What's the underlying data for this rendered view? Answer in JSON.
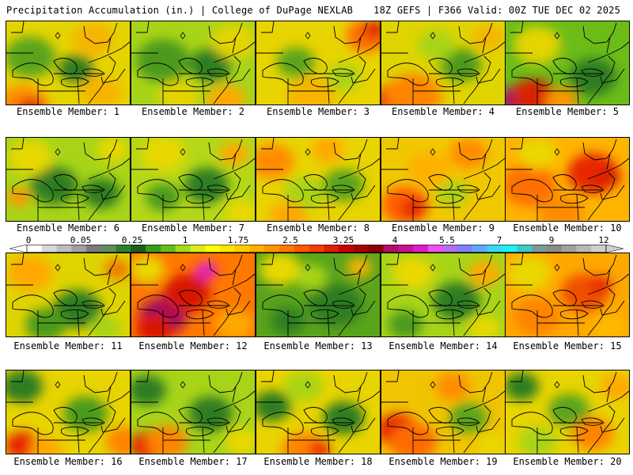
{
  "header": {
    "left_title": "Precipitation Accumulation (in.) | College of DuPage NEXLAB",
    "right_title": "18Z GEFS | F366 Valid: 00Z TUE DEC 02 2025"
  },
  "colorbar": {
    "labels": [
      "0",
      "0.05",
      "0.25",
      "1",
      "1.75",
      "2.5",
      "3.25",
      "4",
      "5.5",
      "7",
      "9",
      "12"
    ],
    "colors": [
      "#ffffff",
      "#d8d8d8",
      "#bdbdbd",
      "#a0a0a0",
      "#7a7a7a",
      "#5e8c5e",
      "#2e7d32",
      "#1b5e20",
      "#3a9a1a",
      "#66bb1a",
      "#a8d81a",
      "#d8ec1a",
      "#ffff00",
      "#ffe600",
      "#ffcc00",
      "#ffb000",
      "#ff9400",
      "#ff7800",
      "#ff5a00",
      "#f43c00",
      "#e01e00",
      "#c80000",
      "#a80000",
      "#8c0000",
      "#b0106a",
      "#c8128c",
      "#e01cc8",
      "#f050f0",
      "#b070f0",
      "#8080ff",
      "#60a8ff",
      "#38d8ff",
      "#20f0f0",
      "#40c8c8",
      "#7a9a9a",
      "#8a8a8a",
      "#a0a0a0",
      "#b8b8b8",
      "#d0d0d0"
    ]
  },
  "members": [
    {
      "label": "Ensemble Member: 1",
      "base": "#e4d400",
      "blobs": [
        [
          "#5aa41c",
          30,
          45,
          32
        ],
        [
          "#2f7d22",
          88,
          60,
          22
        ],
        [
          "#ff8c00",
          20,
          108,
          34
        ],
        [
          "#d81800",
          30,
          112,
          18
        ],
        [
          "#f7b400",
          110,
          22,
          26
        ],
        [
          "#f7b400",
          120,
          90,
          26
        ]
      ]
    },
    {
      "label": "Ensemble Member: 2",
      "base": "#a8d418",
      "blobs": [
        [
          "#4c9a1c",
          40,
          50,
          34
        ],
        [
          "#2f7d22",
          100,
          55,
          26
        ],
        [
          "#e4d400",
          130,
          25,
          28
        ],
        [
          "#ffa800",
          120,
          100,
          24
        ],
        [
          "#e4d400",
          60,
          95,
          26
        ]
      ]
    },
    {
      "label": "Ensemble Member: 3",
      "base": "#e8d400",
      "blobs": [
        [
          "#ff6a00",
          140,
          18,
          26
        ],
        [
          "#d82000",
          150,
          10,
          14
        ],
        [
          "#5aa41c",
          50,
          52,
          24
        ],
        [
          "#f7b400",
          70,
          95,
          30
        ],
        [
          "#a8d418",
          110,
          70,
          22
        ]
      ]
    },
    {
      "label": "Ensemble Member: 4",
      "base": "#e0d400",
      "blobs": [
        [
          "#e82800",
          20,
          100,
          28
        ],
        [
          "#ff8400",
          40,
          95,
          36
        ],
        [
          "#4c9a1c",
          100,
          55,
          26
        ],
        [
          "#f7b400",
          135,
          20,
          20
        ],
        [
          "#a8d418",
          70,
          30,
          24
        ]
      ]
    },
    {
      "label": "Ensemble Member: 5",
      "base": "#6cbc18",
      "blobs": [
        [
          "#9a0c70",
          14,
          100,
          22
        ],
        [
          "#d82000",
          35,
          95,
          28
        ],
        [
          "#2f7d22",
          110,
          70,
          30
        ],
        [
          "#e4d400",
          40,
          30,
          30
        ],
        [
          "#ff9400",
          70,
          100,
          20
        ]
      ]
    },
    {
      "label": "Ensemble Member: 6",
      "base": "#a8d418",
      "blobs": [
        [
          "#2f7d22",
          60,
          60,
          30
        ],
        [
          "#2f7d22",
          120,
          70,
          24
        ],
        [
          "#e8d800",
          30,
          25,
          28
        ],
        [
          "#e8d800",
          135,
          15,
          20
        ],
        [
          "#ff9400",
          15,
          75,
          14
        ]
      ]
    },
    {
      "label": "Ensemble Member: 7",
      "base": "#b4d818",
      "blobs": [
        [
          "#2f7d22",
          95,
          60,
          28
        ],
        [
          "#4c9a1c",
          40,
          75,
          22
        ],
        [
          "#e8d800",
          40,
          20,
          28
        ],
        [
          "#ffa800",
          130,
          20,
          18
        ],
        [
          "#e8d800",
          140,
          95,
          22
        ]
      ]
    },
    {
      "label": "Ensemble Member: 8",
      "base": "#e8d400",
      "blobs": [
        [
          "#ff8c00",
          20,
          30,
          28
        ],
        [
          "#5aa41c",
          110,
          60,
          26
        ],
        [
          "#a8d418",
          60,
          70,
          26
        ],
        [
          "#ffa800",
          90,
          15,
          20
        ],
        [
          "#ffa800",
          40,
          100,
          24
        ]
      ]
    },
    {
      "label": "Ensemble Member: 9",
      "base": "#f0c800",
      "blobs": [
        [
          "#ff6000",
          30,
          85,
          30
        ],
        [
          "#e82800",
          40,
          90,
          16
        ],
        [
          "#ff8c00",
          110,
          20,
          24
        ],
        [
          "#a8d418",
          90,
          70,
          20
        ],
        [
          "#ffb000",
          60,
          40,
          28
        ]
      ]
    },
    {
      "label": "Ensemble Member: 10",
      "base": "#ffb400",
      "blobs": [
        [
          "#e82800",
          110,
          45,
          32
        ],
        [
          "#ff7000",
          30,
          60,
          34
        ],
        [
          "#ff8c00",
          70,
          95,
          28
        ],
        [
          "#e8d800",
          40,
          20,
          24
        ],
        [
          "#d82000",
          130,
          50,
          16
        ]
      ]
    },
    {
      "label": "Ensemble Member: 11",
      "base": "#e0d400",
      "blobs": [
        [
          "#2f7d22",
          90,
          70,
          30
        ],
        [
          "#4c9a1c",
          50,
          90,
          26
        ],
        [
          "#ffa800",
          30,
          25,
          28
        ],
        [
          "#f07800",
          140,
          20,
          16
        ],
        [
          "#a8d418",
          125,
          95,
          20
        ]
      ]
    },
    {
      "label": "Ensemble Member: 12",
      "base": "#ff7800",
      "blobs": [
        [
          "#a00c60",
          40,
          80,
          30
        ],
        [
          "#e01cc8",
          95,
          22,
          14
        ],
        [
          "#d81800",
          70,
          50,
          30
        ],
        [
          "#d81800",
          30,
          95,
          24
        ],
        [
          "#ffa800",
          130,
          90,
          24
        ],
        [
          "#e8d800",
          20,
          20,
          22
        ]
      ]
    },
    {
      "label": "Ensemble Member: 13",
      "base": "#5aa41c",
      "blobs": [
        [
          "#2f7d22",
          100,
          65,
          34
        ],
        [
          "#2f7d22",
          40,
          85,
          22
        ],
        [
          "#e8d800",
          30,
          20,
          26
        ],
        [
          "#f7b400",
          130,
          18,
          16
        ],
        [
          "#a8d418",
          70,
          30,
          20
        ]
      ]
    },
    {
      "label": "Ensemble Member: 14",
      "base": "#a8d418",
      "blobs": [
        [
          "#2f7d22",
          95,
          60,
          30
        ],
        [
          "#4c9a1c",
          30,
          90,
          22
        ],
        [
          "#e8d800",
          40,
          25,
          26
        ],
        [
          "#ffa800",
          130,
          25,
          20
        ],
        [
          "#e8d800",
          130,
          95,
          20
        ]
      ]
    },
    {
      "label": "Ensemble Member: 15",
      "base": "#ffa800",
      "blobs": [
        [
          "#f05000",
          100,
          50,
          30
        ],
        [
          "#ff8400",
          40,
          80,
          30
        ],
        [
          "#e8d800",
          30,
          25,
          28
        ],
        [
          "#e82800",
          120,
          40,
          14
        ],
        [
          "#ffb800",
          130,
          95,
          22
        ]
      ]
    },
    {
      "label": "Ensemble Member: 16",
      "base": "#e8d400",
      "blobs": [
        [
          "#2f7d22",
          20,
          20,
          26
        ],
        [
          "#e82800",
          20,
          95,
          22
        ],
        [
          "#ff8400",
          150,
          90,
          24
        ],
        [
          "#4c9a1c",
          100,
          55,
          28
        ],
        [
          "#ffa800",
          50,
          100,
          20
        ]
      ]
    },
    {
      "label": "Ensemble Member: 17",
      "base": "#a8d418",
      "blobs": [
        [
          "#2f7d22",
          20,
          25,
          24
        ],
        [
          "#2f7d22",
          100,
          55,
          28
        ],
        [
          "#e82800",
          20,
          95,
          22
        ],
        [
          "#ff8400",
          45,
          90,
          26
        ],
        [
          "#e8d800",
          140,
          90,
          22
        ]
      ]
    },
    {
      "label": "Ensemble Member: 18",
      "base": "#e8d400",
      "blobs": [
        [
          "#2f7d22",
          20,
          45,
          24
        ],
        [
          "#2f7d22",
          110,
          60,
          26
        ],
        [
          "#ff8400",
          60,
          100,
          28
        ],
        [
          "#e82800",
          80,
          100,
          14
        ],
        [
          "#a8d418",
          60,
          20,
          24
        ]
      ]
    },
    {
      "label": "Ensemble Member: 19",
      "base": "#f0c400",
      "blobs": [
        [
          "#e82800",
          20,
          75,
          26
        ],
        [
          "#ff6a00",
          40,
          90,
          30
        ],
        [
          "#5aa41c",
          110,
          60,
          24
        ],
        [
          "#ff8c00",
          90,
          20,
          22
        ],
        [
          "#e8d800",
          140,
          95,
          20
        ]
      ]
    },
    {
      "label": "Ensemble Member: 20",
      "base": "#e8d400",
      "blobs": [
        [
          "#2f7d22",
          20,
          20,
          22
        ],
        [
          "#5aa41c",
          80,
          50,
          26
        ],
        [
          "#ff8400",
          110,
          80,
          26
        ],
        [
          "#ffa800",
          140,
          20,
          20
        ],
        [
          "#a8d418",
          40,
          90,
          24
        ]
      ]
    }
  ]
}
